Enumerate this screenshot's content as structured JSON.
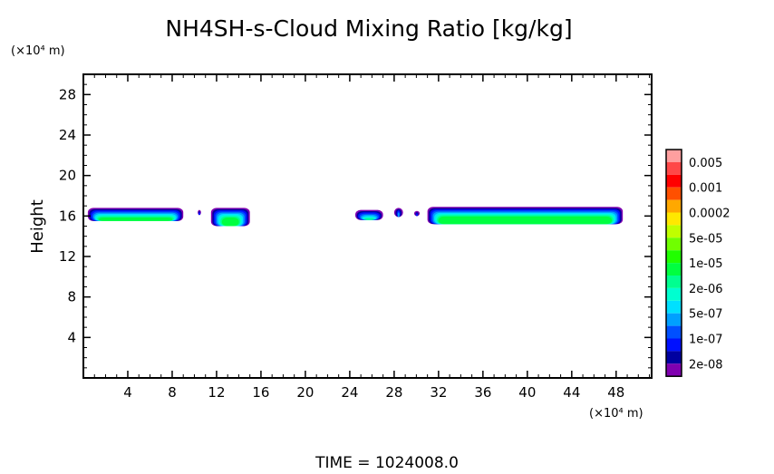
{
  "chart_data": {
    "type": "heatmap",
    "title": "NH4SH-s-Cloud Mixing Ratio [kg/kg]",
    "ylabel": "Height",
    "yunit": "(×10⁴ m)",
    "xunit": "(×10⁴ m)",
    "xlim": [
      0,
      51.2
    ],
    "ylim": [
      0,
      30
    ],
    "xticks": [
      4,
      8,
      12,
      16,
      20,
      24,
      28,
      32,
      36,
      40,
      44,
      48
    ],
    "yticks": [
      4,
      8,
      12,
      16,
      20,
      24,
      28
    ],
    "footer": "TIME = 1024008.0",
    "colorbar": {
      "labels": [
        "0.005",
        "0.001",
        "0.0002",
        "5e-05",
        "1e-05",
        "2e-06",
        "5e-07",
        "1e-07",
        "2e-08"
      ],
      "colors": [
        "#ff9f9f",
        "#ff4848",
        "#ff0000",
        "#ff5000",
        "#ffa800",
        "#ffe800",
        "#c0ff00",
        "#70ff00",
        "#20ff00",
        "#00ff40",
        "#00ff90",
        "#00ffd0",
        "#00e0ff",
        "#00a0ff",
        "#0050ff",
        "#0010ff",
        "#0000a0",
        "#8000b0"
      ]
    },
    "cloud_regions": [
      {
        "x0": 0.4,
        "x1": 9.0,
        "ybot": 15.5,
        "ytop": 16.8,
        "max_level": "1e-05"
      },
      {
        "x0": 10.3,
        "x1": 10.6,
        "ybot": 16.1,
        "ytop": 16.6,
        "max_level": "1e-07"
      },
      {
        "x0": 11.5,
        "x1": 15.0,
        "ybot": 15.0,
        "ytop": 16.8,
        "max_level": "1e-05"
      },
      {
        "x0": 24.5,
        "x1": 27.0,
        "ybot": 15.6,
        "ytop": 16.6,
        "max_level": "1e-05"
      },
      {
        "x0": 28.0,
        "x1": 28.8,
        "ybot": 15.9,
        "ytop": 16.8,
        "max_level": "5e-07"
      },
      {
        "x0": 29.8,
        "x1": 30.3,
        "ybot": 16.0,
        "ytop": 16.5,
        "max_level": "1e-07"
      },
      {
        "x0": 31.0,
        "x1": 48.6,
        "ybot": 15.2,
        "ytop": 16.9,
        "max_level": "1e-05"
      }
    ]
  }
}
